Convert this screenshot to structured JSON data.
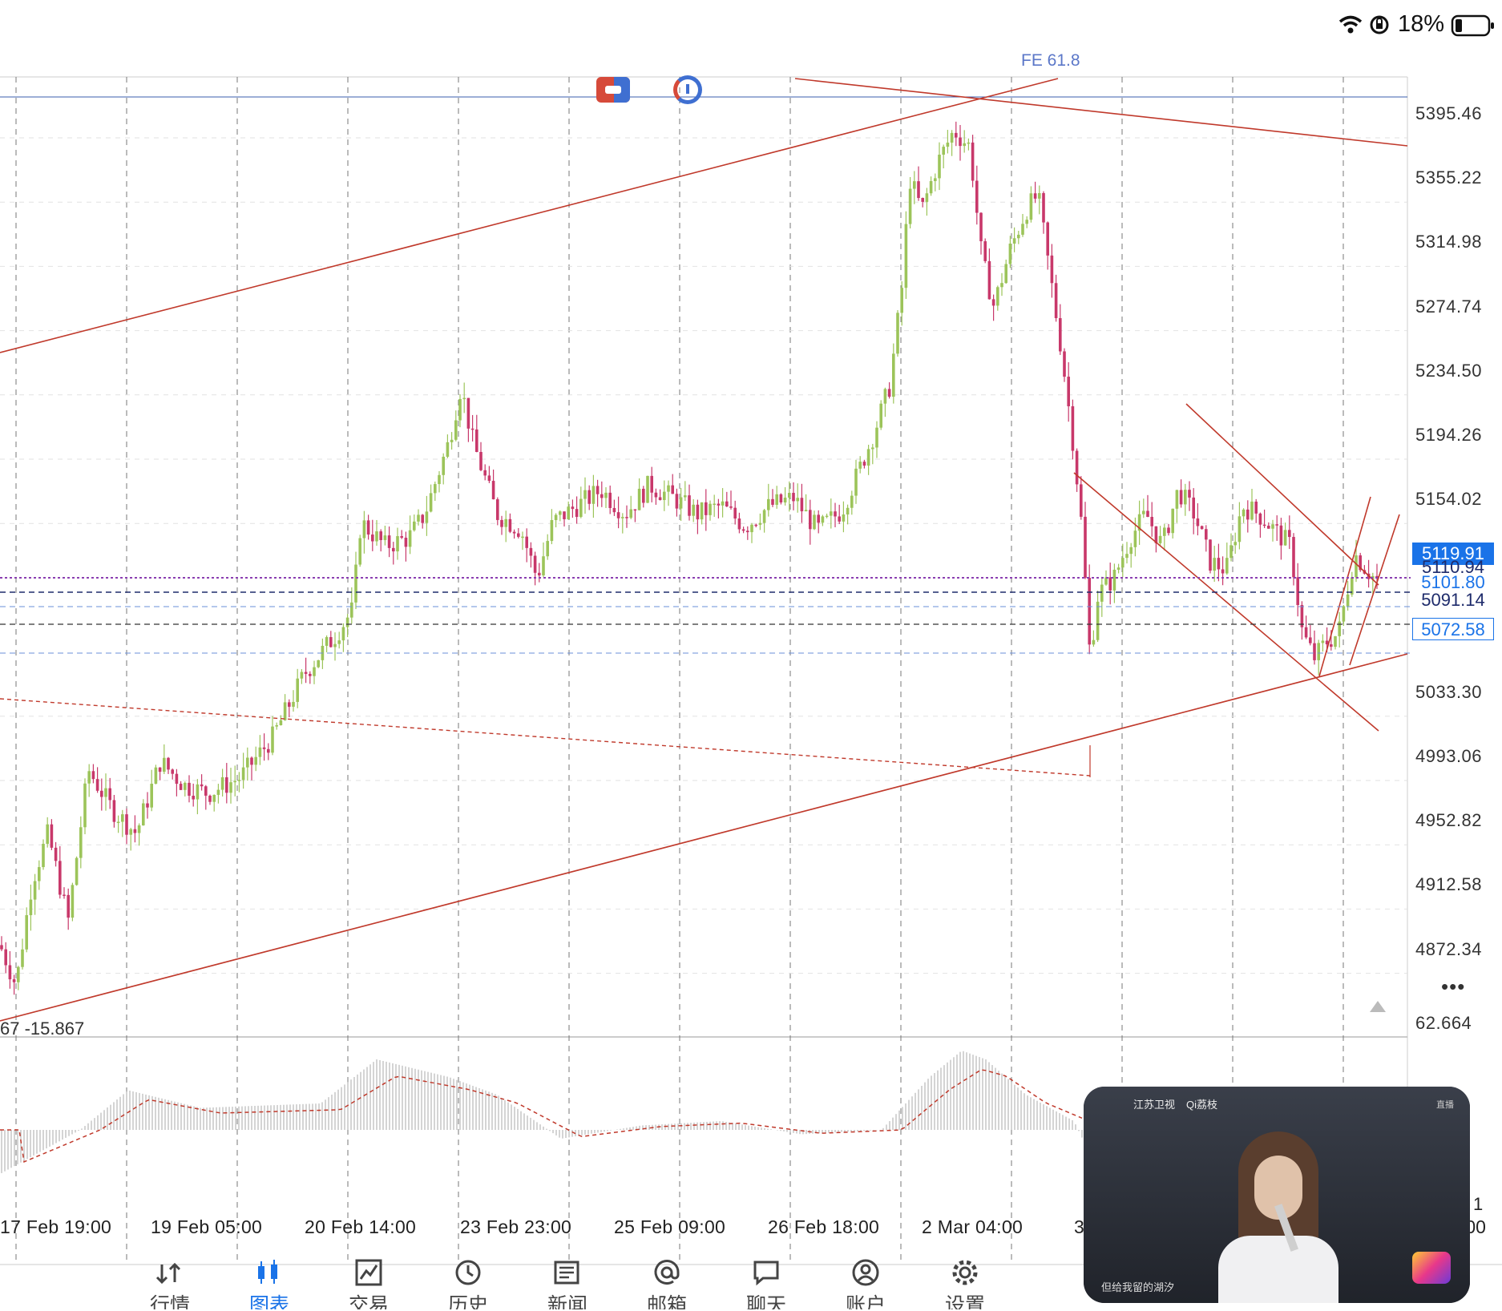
{
  "status_bar": {
    "battery_text": "18%",
    "icons": [
      "wifi-icon",
      "orientation-lock-icon",
      "battery-icon"
    ]
  },
  "chart": {
    "price_ticks": [
      "5395.46",
      "5355.22",
      "5314.98",
      "5274.74",
      "5234.50",
      "5194.26",
      "5154.02",
      "5033.30",
      "4993.06",
      "4952.82",
      "4912.58",
      "4872.34"
    ],
    "oscillator_top_tick": "62.664",
    "oscillator_values": "67 -15.867",
    "time_labels": [
      "17 Feb 19:00",
      "19 Feb 05:00",
      "20 Feb 14:00",
      "23 Feb 23:00",
      "25 Feb 09:00",
      "26 Feb 18:00",
      "2 Mar 04:00",
      "3"
    ],
    "right_edge_time_fragment": ":00",
    "right_edge_osc_fragment": "1",
    "fibo_label": "FE 61.8",
    "price_lines": {
      "current": "5119.91",
      "line_2": "5110.94",
      "line_3": "5101.80",
      "line_4": "5091.14",
      "line_5": "5072.58"
    },
    "more_label": "•••",
    "colors": {
      "bull": "#9cc45a",
      "bear": "#c8386a",
      "trendline": "#c0392b",
      "current_line": "#8b3fb1",
      "accent": "#1a73e8"
    }
  },
  "tab_bar": {
    "tabs": [
      {
        "label": "行情",
        "icon": "quotes-icon",
        "active": false
      },
      {
        "label": "图表",
        "icon": "chart-icon",
        "active": true
      },
      {
        "label": "交易",
        "icon": "trade-icon",
        "active": false
      },
      {
        "label": "历史",
        "icon": "history-icon",
        "active": false
      },
      {
        "label": "新闻",
        "icon": "news-icon",
        "active": false
      },
      {
        "label": "邮箱",
        "icon": "mail-icon",
        "active": false
      },
      {
        "label": "聊天",
        "icon": "chat-icon",
        "active": false
      },
      {
        "label": "账户",
        "icon": "account-icon",
        "active": false
      },
      {
        "label": "设置",
        "icon": "settings-icon",
        "active": false
      }
    ]
  },
  "pip_video": {
    "channel_text": "江苏卫视",
    "app_text": "Qi荔枝",
    "caption": "但给我留的湖汐",
    "corner_text": "直播"
  }
}
